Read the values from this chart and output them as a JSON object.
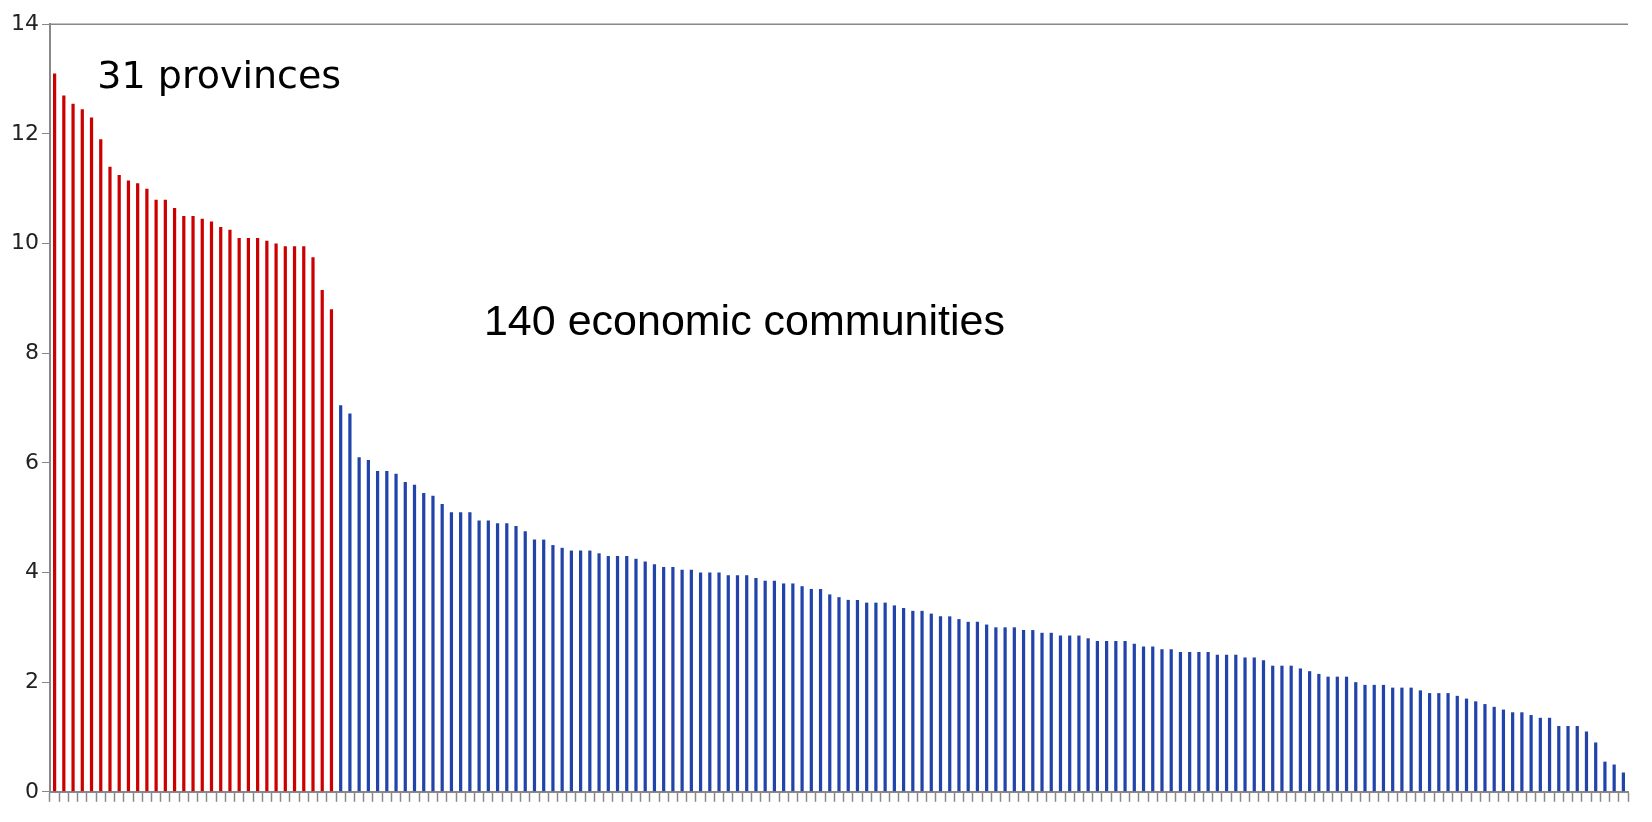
{
  "chart_data": {
    "type": "bar",
    "categories": [
      null,
      null,
      null,
      null,
      null,
      null,
      null,
      null,
      null,
      null,
      null,
      null,
      null,
      null,
      null,
      null,
      null,
      null,
      null,
      null,
      null,
      null,
      null,
      null,
      null,
      null,
      null,
      null,
      null,
      null,
      null,
      null,
      null,
      null,
      null,
      null,
      null,
      null,
      null,
      null,
      null,
      null,
      null,
      null,
      null,
      null,
      null,
      null,
      null,
      null,
      null,
      null,
      null,
      null,
      null,
      null,
      null,
      null,
      null,
      null,
      null,
      null,
      null,
      null,
      null,
      null,
      null,
      null,
      null,
      null,
      null,
      null,
      null,
      null,
      null,
      null,
      null,
      null,
      null,
      null,
      null,
      null,
      null,
      null,
      null,
      null,
      null,
      null,
      null,
      null,
      null,
      null,
      null,
      null,
      null,
      null,
      null,
      null,
      null,
      null,
      null,
      null,
      null,
      null,
      null,
      null,
      null,
      null,
      null,
      null,
      null,
      null,
      null,
      null,
      null,
      null,
      null,
      null,
      null,
      null,
      null,
      null,
      null,
      null,
      null,
      null,
      null,
      null,
      null,
      null,
      null,
      null,
      null,
      null,
      null,
      null,
      null,
      null,
      null,
      null,
      null,
      null,
      null,
      null,
      null,
      null,
      null,
      null,
      null,
      null,
      null,
      null,
      null,
      null,
      null,
      null,
      null,
      null,
      null,
      null,
      null,
      null,
      null,
      null,
      null,
      null,
      null,
      null,
      null,
      null,
      null
    ],
    "values": [
      13.1,
      12.7,
      12.55,
      12.45,
      12.3,
      11.9,
      11.4,
      11.25,
      11.15,
      11.1,
      11.0,
      10.8,
      10.8,
      10.65,
      10.5,
      10.5,
      10.45,
      10.4,
      10.3,
      10.25,
      10.1,
      10.1,
      10.1,
      10.05,
      10.0,
      9.95,
      9.95,
      9.95,
      9.75,
      9.15,
      8.8,
      7.05,
      6.9,
      6.1,
      6.05,
      5.85,
      5.85,
      5.8,
      5.65,
      5.6,
      5.45,
      5.4,
      5.25,
      5.1,
      5.1,
      5.1,
      4.95,
      4.95,
      4.9,
      4.9,
      4.85,
      4.75,
      4.6,
      4.6,
      4.5,
      4.45,
      4.4,
      4.4,
      4.4,
      4.35,
      4.3,
      4.3,
      4.3,
      4.25,
      4.2,
      4.15,
      4.1,
      4.1,
      4.05,
      4.05,
      4.0,
      4.0,
      4.0,
      3.95,
      3.95,
      3.95,
      3.9,
      3.85,
      3.85,
      3.8,
      3.8,
      3.75,
      3.7,
      3.7,
      3.6,
      3.55,
      3.5,
      3.5,
      3.45,
      3.45,
      3.45,
      3.4,
      3.35,
      3.3,
      3.3,
      3.25,
      3.2,
      3.2,
      3.15,
      3.1,
      3.1,
      3.05,
      3.0,
      3.0,
      3.0,
      2.95,
      2.95,
      2.9,
      2.9,
      2.85,
      2.85,
      2.85,
      2.8,
      2.75,
      2.75,
      2.75,
      2.75,
      2.7,
      2.65,
      2.65,
      2.6,
      2.6,
      2.55,
      2.55,
      2.55,
      2.55,
      2.5,
      2.5,
      2.5,
      2.45,
      2.45,
      2.4,
      2.3,
      2.3,
      2.3,
      2.25,
      2.2,
      2.15,
      2.1,
      2.1,
      2.1,
      2.0,
      1.95,
      1.95,
      1.95,
      1.9,
      1.9,
      1.9,
      1.85,
      1.8,
      1.8,
      1.8,
      1.75,
      1.7,
      1.65,
      1.6,
      1.55,
      1.5,
      1.45,
      1.45,
      1.4,
      1.35,
      1.35,
      1.2,
      1.2,
      1.2,
      1.1,
      0.9,
      0.55,
      0.5,
      0.35
    ],
    "colors": [
      "#cc0000",
      "#cc0000",
      "#cc0000",
      "#cc0000",
      "#cc0000",
      "#cc0000",
      "#cc0000",
      "#cc0000",
      "#cc0000",
      "#cc0000",
      "#cc0000",
      "#cc0000",
      "#cc0000",
      "#cc0000",
      "#cc0000",
      "#cc0000",
      "#cc0000",
      "#cc0000",
      "#cc0000",
      "#cc0000",
      "#cc0000",
      "#cc0000",
      "#cc0000",
      "#cc0000",
      "#cc0000",
      "#cc0000",
      "#cc0000",
      "#cc0000",
      "#cc0000",
      "#cc0000",
      "#cc0000",
      "#2244aa",
      "#2244aa",
      "#2244aa",
      "#2244aa",
      "#2244aa",
      "#2244aa",
      "#2244aa",
      "#2244aa",
      "#2244aa",
      "#2244aa",
      "#2244aa",
      "#2244aa",
      "#2244aa",
      "#2244aa",
      "#2244aa",
      "#2244aa",
      "#2244aa",
      "#2244aa",
      "#2244aa",
      "#2244aa",
      "#2244aa",
      "#2244aa",
      "#2244aa",
      "#2244aa",
      "#2244aa",
      "#2244aa",
      "#2244aa",
      "#2244aa",
      "#2244aa",
      "#2244aa",
      "#2244aa",
      "#2244aa",
      "#2244aa",
      "#2244aa",
      "#2244aa",
      "#2244aa",
      "#2244aa",
      "#2244aa",
      "#2244aa",
      "#2244aa",
      "#2244aa",
      "#2244aa",
      "#2244aa",
      "#2244aa",
      "#2244aa",
      "#2244aa",
      "#2244aa",
      "#2244aa",
      "#2244aa",
      "#2244aa",
      "#2244aa",
      "#2244aa",
      "#2244aa",
      "#2244aa",
      "#2244aa",
      "#2244aa",
      "#2244aa",
      "#2244aa",
      "#2244aa",
      "#2244aa",
      "#2244aa",
      "#2244aa",
      "#2244aa",
      "#2244aa",
      "#2244aa",
      "#2244aa",
      "#2244aa",
      "#2244aa",
      "#2244aa",
      "#2244aa",
      "#2244aa",
      "#2244aa",
      "#2244aa",
      "#2244aa",
      "#2244aa",
      "#2244aa",
      "#2244aa",
      "#2244aa",
      "#2244aa",
      "#2244aa",
      "#2244aa",
      "#2244aa",
      "#2244aa",
      "#2244aa",
      "#2244aa",
      "#2244aa",
      "#2244aa",
      "#2244aa",
      "#2244aa",
      "#2244aa",
      "#2244aa",
      "#2244aa",
      "#2244aa",
      "#2244aa",
      "#2244aa",
      "#2244aa",
      "#2244aa",
      "#2244aa",
      "#2244aa",
      "#2244aa",
      "#2244aa",
      "#2244aa",
      "#2244aa",
      "#2244aa",
      "#2244aa",
      "#2244aa",
      "#2244aa",
      "#2244aa",
      "#2244aa",
      "#2244aa",
      "#2244aa",
      "#2244aa",
      "#2244aa",
      "#2244aa",
      "#2244aa",
      "#2244aa",
      "#2244aa",
      "#2244aa",
      "#2244aa",
      "#2244aa",
      "#2244aa",
      "#2244aa",
      "#2244aa",
      "#2244aa",
      "#2244aa",
      "#2244aa",
      "#2244aa",
      "#2244aa",
      "#2244aa",
      "#2244aa",
      "#2244aa",
      "#2244aa",
      "#2244aa",
      "#2244aa",
      "#2244aa",
      "#2244aa",
      "#2244aa",
      "#2244aa",
      "#2244aa",
      "#2244aa"
    ],
    "ylim": [
      0,
      14
    ],
    "yticks": [
      0,
      2,
      4,
      6,
      8,
      10,
      12,
      14
    ],
    "grid": false,
    "tick_labels": "y",
    "annotations": [
      "31 provinces",
      "140 economic communities"
    ]
  }
}
